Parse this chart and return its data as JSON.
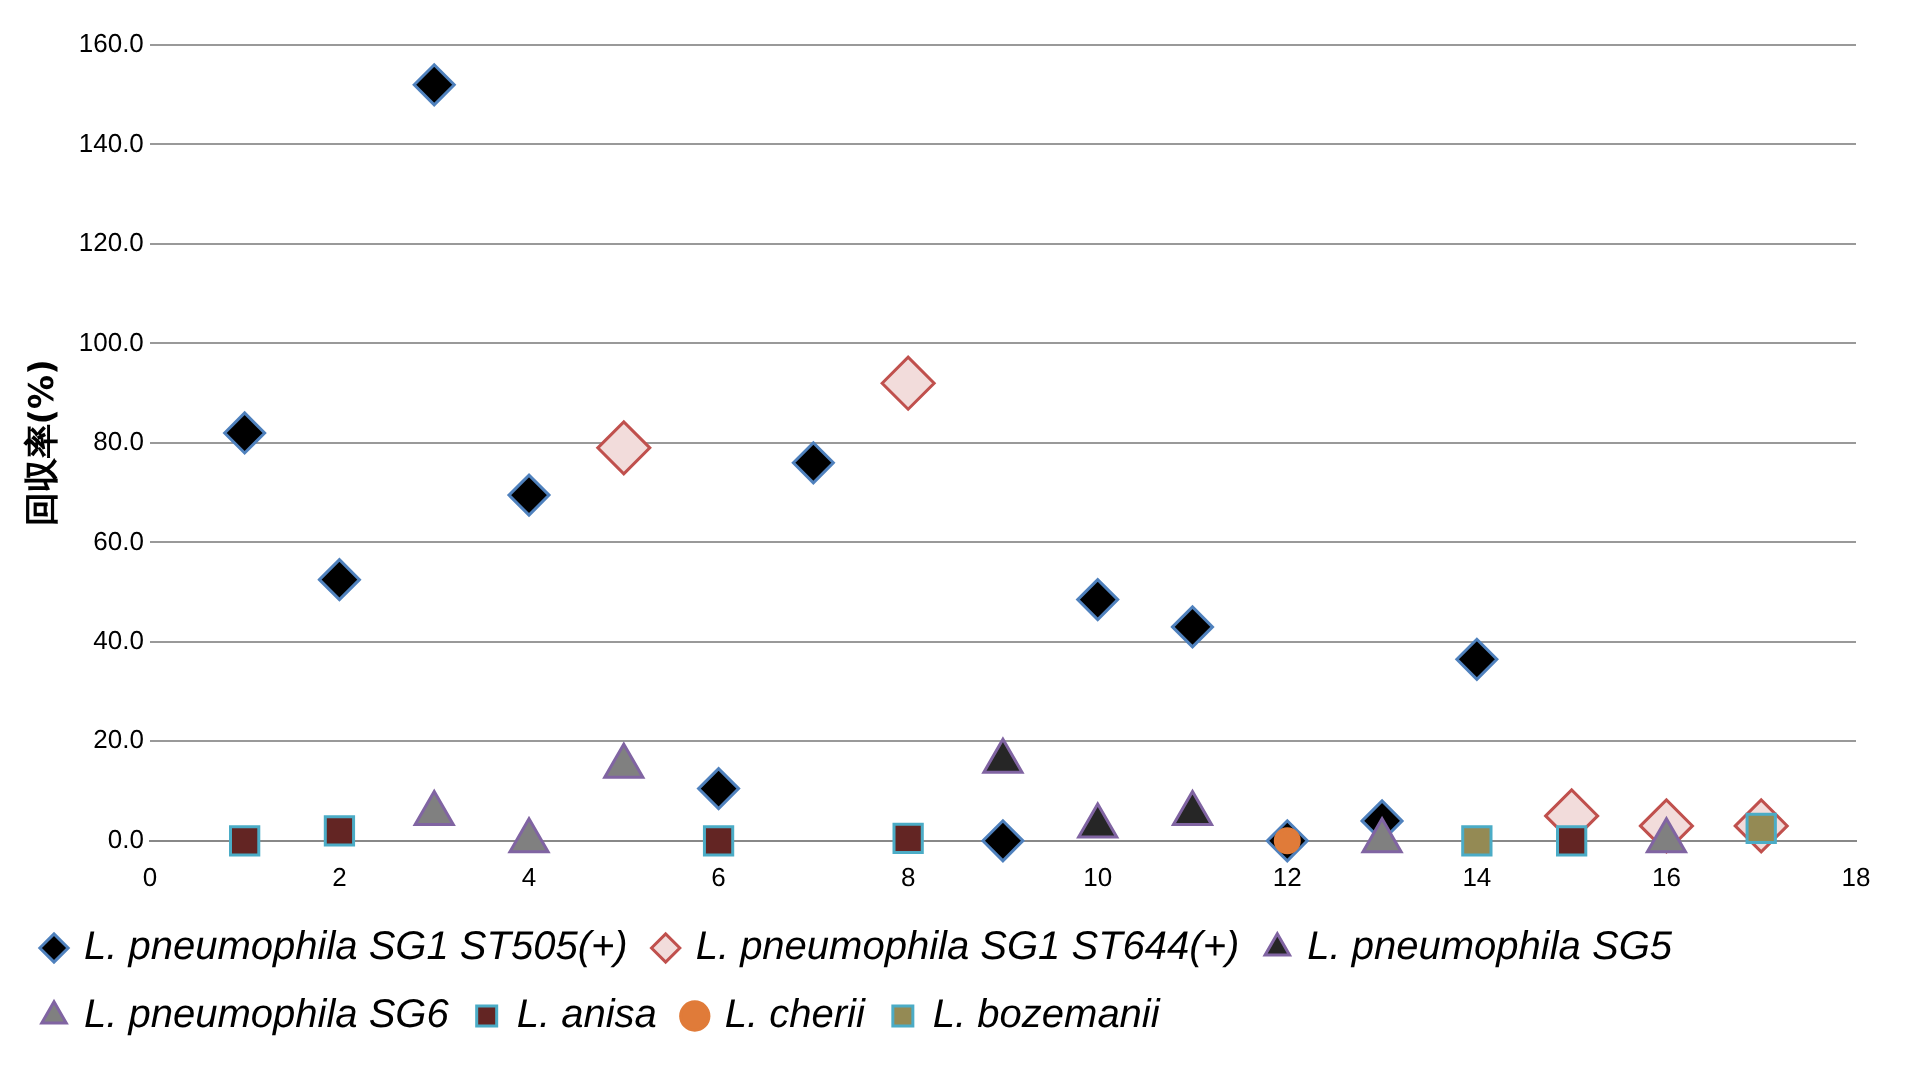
{
  "chart_data": {
    "type": "scatter",
    "ylabel": "回収率(%)",
    "xlim": [
      0,
      18
    ],
    "xticks": [
      0,
      2,
      4,
      6,
      8,
      10,
      12,
      14,
      16,
      18
    ],
    "ylim": [
      0,
      160
    ],
    "yticks": [
      {
        "value": 0,
        "label": "0.0"
      },
      {
        "value": 20,
        "label": "20.0"
      },
      {
        "value": 40,
        "label": "40.0"
      },
      {
        "value": 60,
        "label": "60.0"
      },
      {
        "value": 80,
        "label": "80.0"
      },
      {
        "value": 100,
        "label": "100.0"
      },
      {
        "value": 120,
        "label": "120.0"
      },
      {
        "value": 140,
        "label": "140.0"
      },
      {
        "value": 160,
        "label": "160.0"
      }
    ],
    "grid": "y",
    "legend": "bottom",
    "series": [
      {
        "name": "L. pneumophila SG1 ST505(+)",
        "color": "#000000",
        "marker": "diamond",
        "x": [
          1,
          2,
          3,
          4,
          6,
          7,
          9,
          10,
          11,
          12,
          13,
          14
        ],
        "values": [
          82,
          52.5,
          152,
          69.5,
          10.5,
          76,
          0,
          48.5,
          43,
          0,
          4,
          36.5
        ]
      },
      {
        "name": "L. pneumophila SG1 ST644(+)",
        "color": "#c0504d",
        "marker": "diamond",
        "x": [
          5,
          8,
          15,
          16,
          17
        ],
        "values": [
          79,
          92,
          5,
          3,
          3
        ]
      },
      {
        "name": "L. pneumophila SG5",
        "color": "#262626",
        "marker": "triangle",
        "x": [
          9,
          10,
          11
        ],
        "values": [
          16,
          3,
          5.5
        ]
      },
      {
        "name": "L. pneumophila SG6",
        "color": "#808080",
        "marker": "triangle",
        "x": [
          3,
          4,
          5,
          13,
          16
        ],
        "values": [
          5.5,
          0,
          15,
          0,
          0
        ]
      },
      {
        "name": "L. anisa",
        "color": "#632523",
        "marker": "square",
        "x": [
          1,
          2,
          6,
          8,
          15
        ],
        "values": [
          0,
          2,
          0,
          0.5,
          0
        ]
      },
      {
        "name": "L. cherii",
        "color": "#e07b39",
        "marker": "circle",
        "x": [
          12
        ],
        "values": [
          0
        ]
      },
      {
        "name": "L. bozemanii",
        "color": "#948a54",
        "marker": "square",
        "x": [
          14,
          17
        ],
        "values": [
          0,
          2.5
        ]
      }
    ]
  }
}
